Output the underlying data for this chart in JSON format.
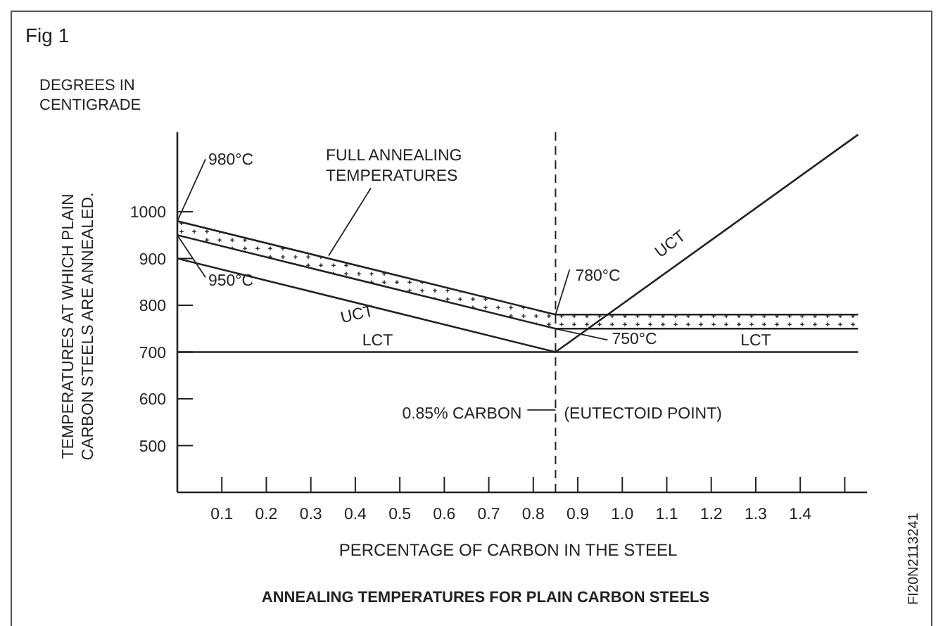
{
  "chart_data": {
    "type": "line",
    "title": "Fig 1",
    "xlabel": "PERCENTAGE OF CARBON IN THE STEEL",
    "ylabel": "TEMPERATURES AT WHICH PLAIN\nCARBON STEELS ARE ANNEALED.",
    "xlim": [
      0,
      1.55
    ],
    "ylim": [
      400,
      1170
    ],
    "xticks": [
      0.1,
      0.2,
      0.3,
      0.4,
      0.5,
      0.6,
      0.7,
      0.8,
      0.9,
      {
        "value": 1.0,
        "label": "1.0"
      },
      1.1,
      1.2,
      1.3,
      1.4,
      {
        "value": 1.5,
        "label": null
      }
    ],
    "yticks": [
      500,
      600,
      700,
      800,
      900,
      1000
    ],
    "grid": false,
    "marker": "none",
    "line_style": "solid",
    "series": [
      {
        "color": "#222222",
        "x": [
          0,
          0.85,
          1.53
        ],
        "values": [
          980,
          780,
          780
        ]
      },
      {
        "color": "#222222",
        "x": [
          0,
          0.85,
          1.53
        ],
        "values": [
          950,
          750,
          750
        ]
      },
      {
        "color": "#222222",
        "x": [
          0,
          0.85,
          1.53
        ],
        "values": [
          900,
          700,
          1165
        ]
      },
      {
        "color": "#222222",
        "x": [
          0,
          1.53
        ],
        "values": [
          700,
          700
        ]
      }
    ],
    "ref_lines": [
      {
        "axis": "x",
        "value": 0.85,
        "line_style": "dashed",
        "color": "#222222"
      }
    ],
    "annotations": [
      {
        "text": "980°C",
        "x": 0,
        "y": 980
      },
      {
        "text": "950°C",
        "x": 0,
        "y": 950
      },
      {
        "text": "780°C",
        "x": 0.85,
        "y": 780
      },
      {
        "text": "750°C",
        "x": 0.85,
        "y": 750
      },
      {
        "text": "FULL ANNEALING\nTEMPERATURES",
        "x": 0.34,
        "y": 906
      },
      {
        "text": "UCT",
        "x": 0.4,
        "y": 806
      },
      {
        "text": "UCT",
        "x": 1.14,
        "y": 898
      },
      {
        "text": "LCT",
        "x": 0.45,
        "y": 700
      },
      {
        "text": "LCT",
        "x": 1.3,
        "y": 700
      },
      {
        "text": "0.85% CARBON",
        "x": 0.85,
        "y": 570
      },
      {
        "text": "(EUTECTOID POINT)",
        "x": 0.85,
        "y": 570
      },
      "DEGREES IN\nCENTIGRADE",
      "ANNEALING TEMPERATURES FOR PLAIN CARBON STEELS",
      "FI20N2113241"
    ]
  }
}
